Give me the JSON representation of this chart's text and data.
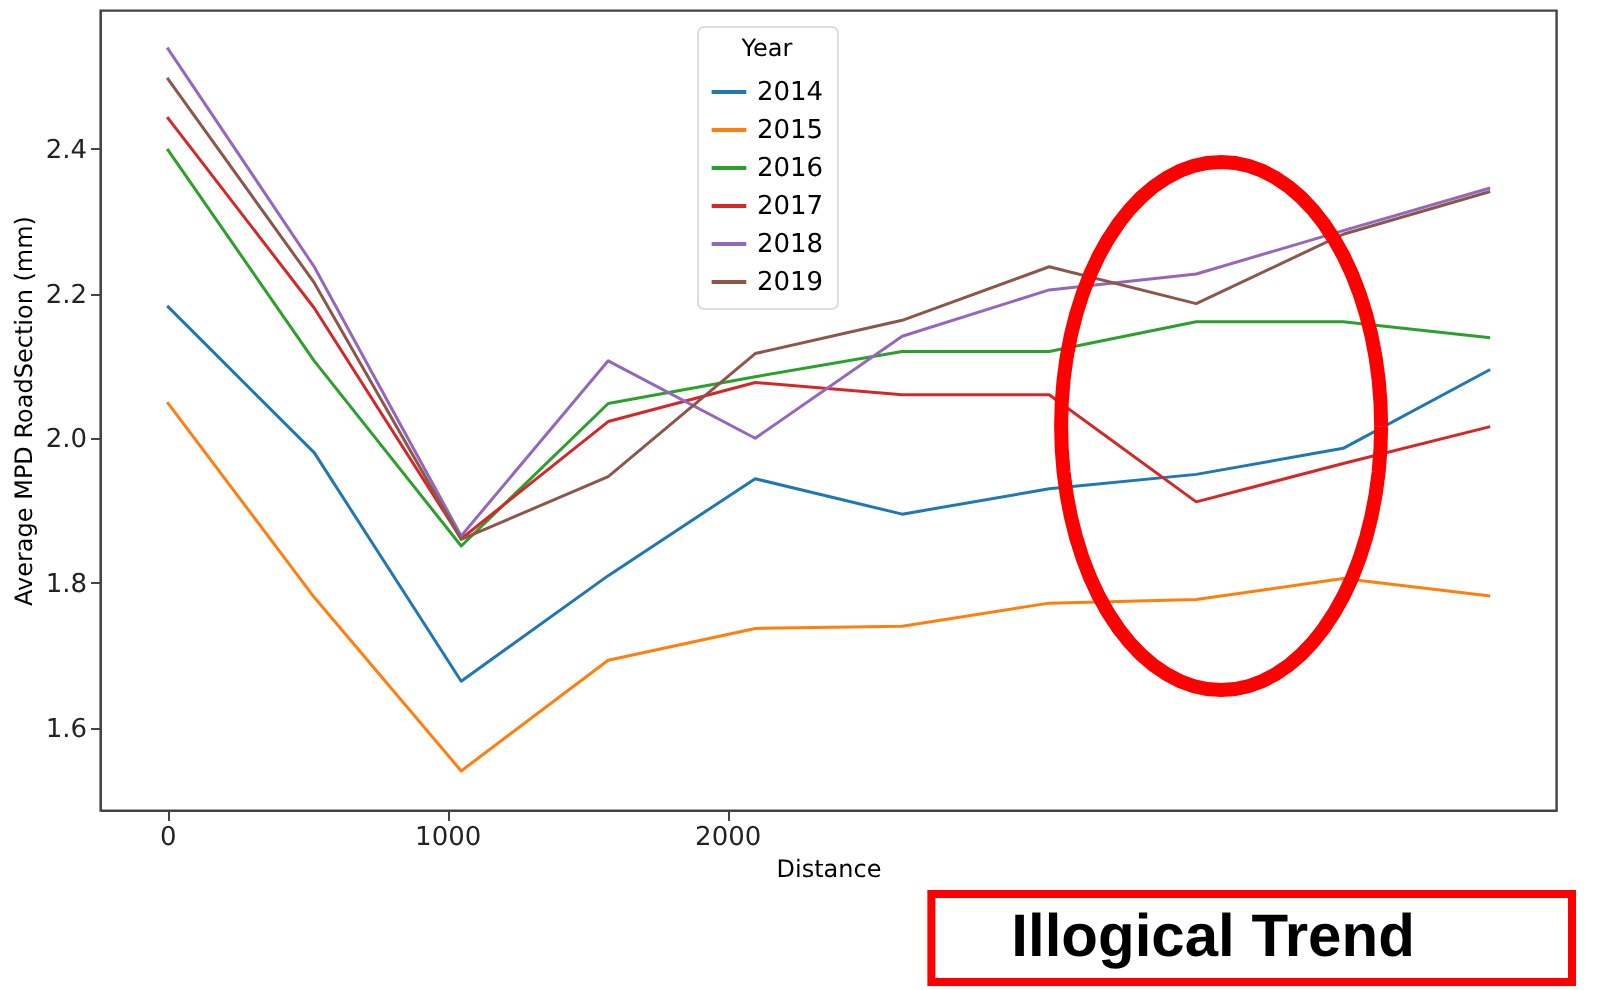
{
  "chart_data": {
    "type": "line",
    "xlabel": "Distance",
    "ylabel": "Average MPD RoadSection (mm)",
    "legend_title": "Year",
    "x": [
      0,
      525,
      1050,
      1575,
      2100,
      2625,
      3150,
      3675,
      4200,
      4725
    ],
    "series": [
      {
        "name": "2014",
        "color": "#1f77b4",
        "values": [
          2.183,
          1.98,
          1.664,
          1.81,
          1.944,
          1.895,
          1.93,
          1.95,
          1.986,
          2.095
        ]
      },
      {
        "name": "2015",
        "color": "#ff7f0e",
        "values": [
          2.05,
          1.78,
          1.54,
          1.693,
          1.737,
          1.74,
          1.772,
          1.777,
          1.806,
          1.782
        ]
      },
      {
        "name": "2016",
        "color": "#2ca02c",
        "values": [
          2.4,
          2.107,
          1.851,
          2.048,
          2.085,
          2.12,
          2.12,
          2.161,
          2.161,
          2.139
        ]
      },
      {
        "name": "2017",
        "color": "#d62728",
        "values": [
          2.444,
          2.18,
          1.861,
          2.023,
          2.077,
          2.06,
          2.06,
          1.912,
          1.965,
          2.016
        ]
      },
      {
        "name": "2018",
        "color": "#9467bd",
        "values": [
          2.54,
          2.237,
          1.865,
          2.107,
          2.0,
          2.141,
          2.205,
          2.227,
          2.287,
          2.346
        ]
      },
      {
        "name": "2019",
        "color": "#8c564b",
        "values": [
          2.498,
          2.215,
          1.86,
          1.947,
          2.117,
          2.163,
          2.237,
          2.186,
          2.282,
          2.341
        ]
      }
    ],
    "xlim": [
      -240,
      4960
    ],
    "xticks": [
      0,
      1000,
      2000
    ],
    "ylim": [
      1.486,
      2.592
    ],
    "yticks": [
      1.6,
      1.8,
      {
        "value": 2.0,
        "label": "2.0"
      },
      2.2,
      2.4
    ],
    "grid": false,
    "legend": "top",
    "marker": "none",
    "line_style": "solid",
    "annotations": [
      "Illogical Trend"
    ]
  }
}
